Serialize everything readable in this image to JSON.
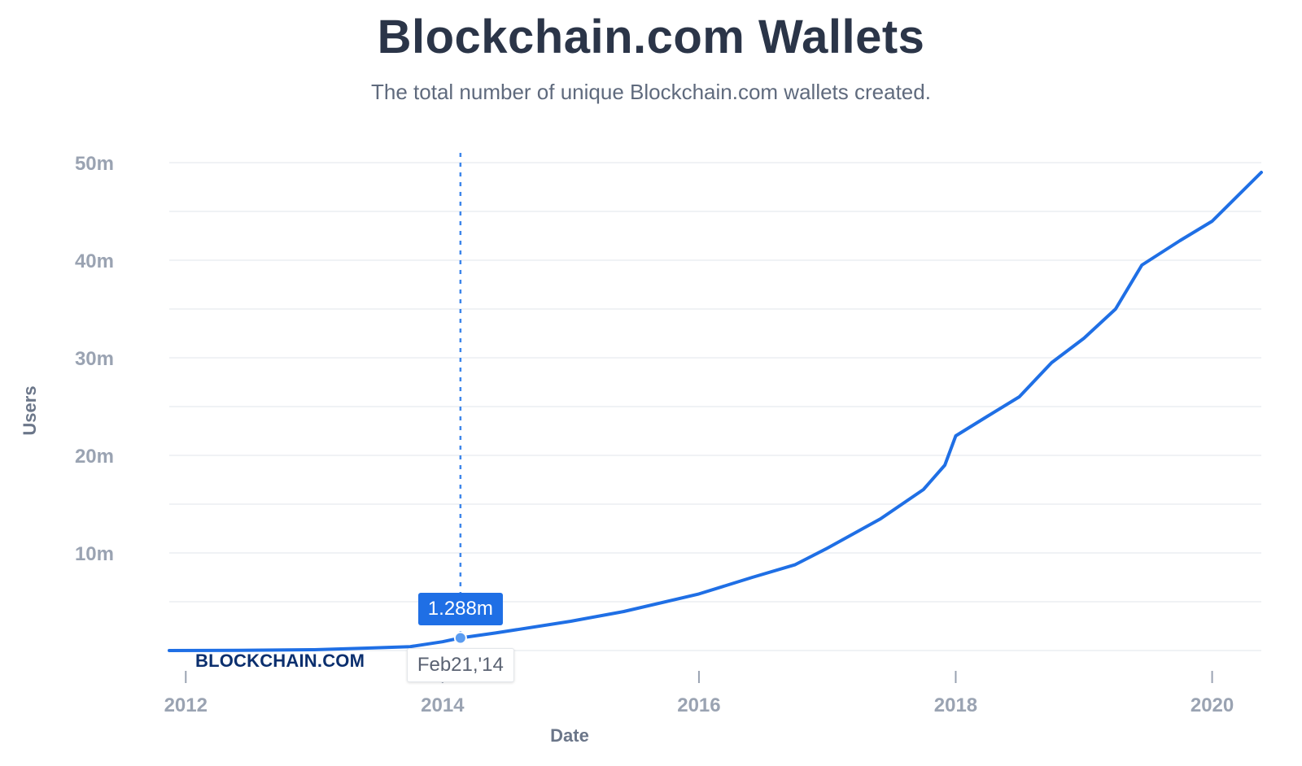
{
  "chart_data": {
    "type": "line",
    "title": "Blockchain.com Wallets",
    "subtitle": "The total number of unique Blockchain.com wallets created.",
    "xlabel": "Date",
    "ylabel": "Users",
    "x_ticks": [
      "2012",
      "2014",
      "2016",
      "2018",
      "2020"
    ],
    "y_ticks": [
      "10m",
      "20m",
      "30m",
      "40m",
      "50m"
    ],
    "ylim": [
      0,
      51000000
    ],
    "xlim": [
      "2011-11-15",
      "2020-05-20"
    ],
    "grid": true,
    "series": [
      {
        "color": "#1f6fe5",
        "points": [
          [
            "2011-11-15",
            0
          ],
          [
            "2012-06-01",
            20000
          ],
          [
            "2013-01-01",
            80000
          ],
          [
            "2013-06-01",
            250000
          ],
          [
            "2013-10-01",
            400000
          ],
          [
            "2014-01-01",
            900000
          ],
          [
            "2014-02-21",
            1288000
          ],
          [
            "2014-06-01",
            1800000
          ],
          [
            "2015-01-01",
            3000000
          ],
          [
            "2015-06-01",
            4000000
          ],
          [
            "2016-01-01",
            5800000
          ],
          [
            "2016-06-01",
            7500000
          ],
          [
            "2016-10-01",
            8800000
          ],
          [
            "2017-01-01",
            10500000
          ],
          [
            "2017-06-01",
            13500000
          ],
          [
            "2017-10-01",
            16500000
          ],
          [
            "2017-12-01",
            19000000
          ],
          [
            "2018-01-01",
            22000000
          ],
          [
            "2018-04-01",
            24000000
          ],
          [
            "2018-07-01",
            26000000
          ],
          [
            "2018-10-01",
            29500000
          ],
          [
            "2019-01-01",
            32000000
          ],
          [
            "2019-04-01",
            35000000
          ],
          [
            "2019-06-15",
            39500000
          ],
          [
            "2019-10-01",
            42000000
          ],
          [
            "2020-01-01",
            44000000
          ],
          [
            "2020-05-20",
            49000000
          ]
        ]
      }
    ],
    "highlight": {
      "date": "2014-02-21",
      "date_label": "Feb21,'14",
      "value": 1288000,
      "value_label": "1.288m"
    }
  },
  "watermark": "BLOCKCHAIN.COM",
  "colors": {
    "line": "#1f6fe5",
    "grid": "#e8ebef",
    "tick_text": "#9aa3b2",
    "title": "#2b3548"
  }
}
